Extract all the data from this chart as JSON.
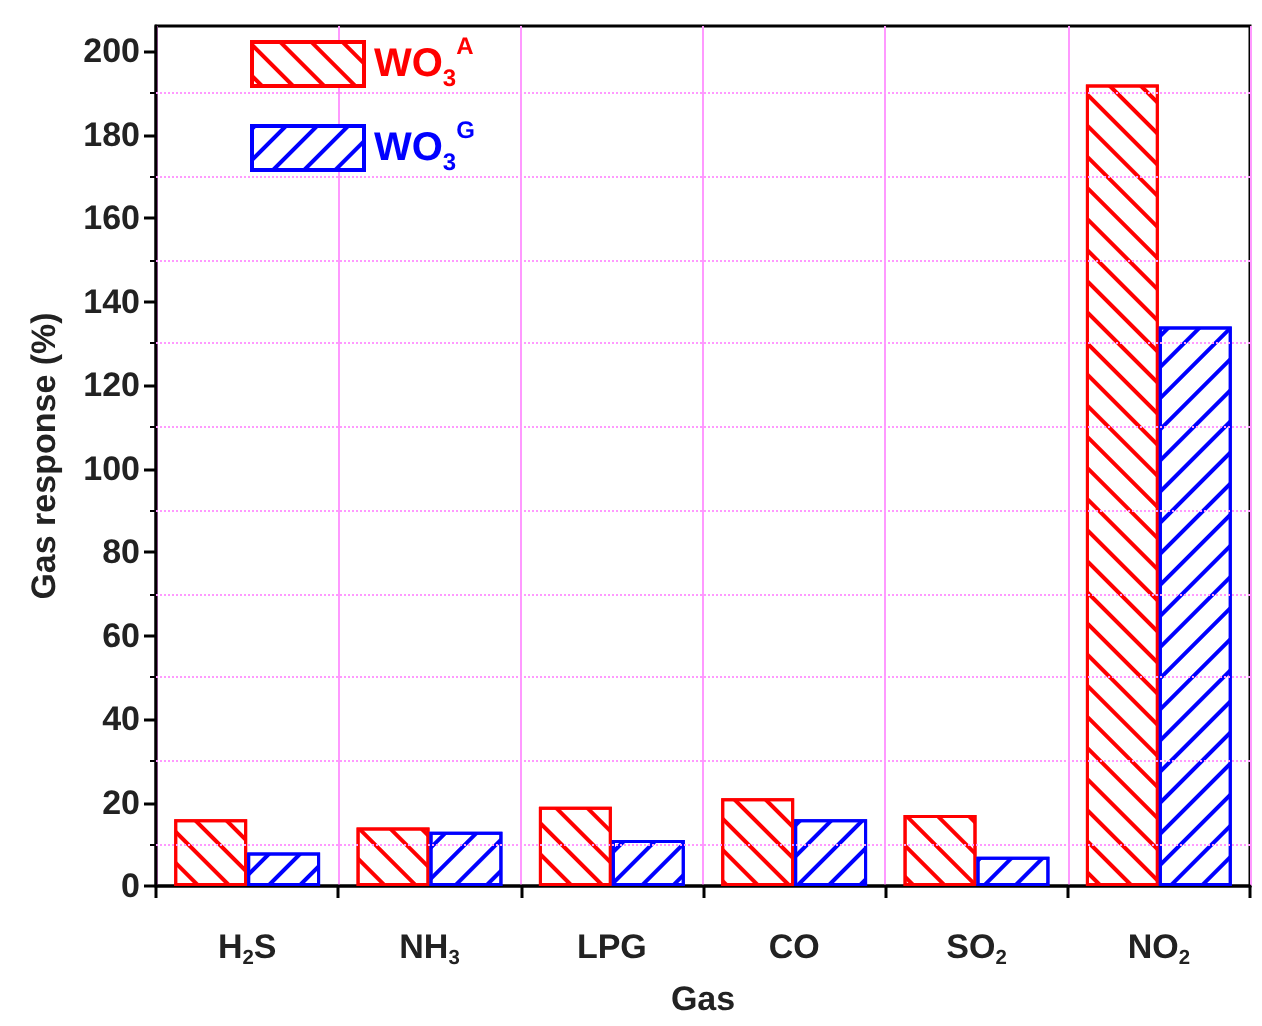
{
  "chart_data": {
    "type": "bar",
    "xlabel": "Gas",
    "ylabel": "Gas response (%)",
    "categories": [
      "H$_{2}$S",
      "NH$_{3}$",
      "LPG",
      "CO",
      "SO$_{2}$",
      "NO$_{2}$"
    ],
    "series": [
      {
        "name": "WO$_{3}$$^{A}$",
        "color": "#ff0000",
        "values": [
          16,
          14,
          19,
          21,
          17,
          192
        ]
      },
      {
        "name": "WO$_{3}$$^{G}$",
        "color": "#0000ff",
        "values": [
          8,
          13,
          11,
          16,
          7,
          134
        ]
      }
    ],
    "ylim": [
      0,
      206
    ],
    "yticks": [
      0,
      20,
      40,
      60,
      80,
      100,
      120,
      140,
      160,
      180,
      200
    ],
    "grid": "x",
    "legend": "top left",
    "ref_lines": [
      {
        "axis": "y",
        "value": 10,
        "color": "#ff99ff",
        "line_style": "dotted"
      },
      {
        "axis": "y",
        "value": 30,
        "color": "#ff99ff",
        "line_style": "dotted"
      },
      {
        "axis": "y",
        "value": 50,
        "color": "#ff99ff",
        "line_style": "dotted"
      },
      {
        "axis": "y",
        "value": 70,
        "color": "#ff99ff",
        "line_style": "dotted"
      },
      {
        "axis": "y",
        "value": 90,
        "color": "#ff99ff",
        "line_style": "dotted"
      },
      {
        "axis": "y",
        "value": 110,
        "color": "#ff99ff",
        "line_style": "dotted"
      },
      {
        "axis": "y",
        "value": 130,
        "color": "#ff99ff",
        "line_style": "dotted"
      },
      {
        "axis": "y",
        "value": 150,
        "color": "#ff99ff",
        "line_style": "dotted"
      },
      {
        "axis": "y",
        "value": 170,
        "color": "#ff99ff",
        "line_style": "dotted"
      },
      {
        "axis": "y",
        "value": 190,
        "color": "#ff99ff",
        "line_style": "dotted"
      }
    ]
  }
}
